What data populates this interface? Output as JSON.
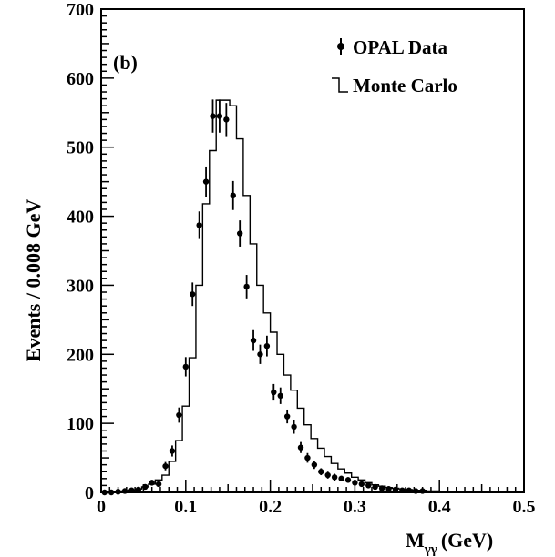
{
  "chart_data": {
    "type": "histogram",
    "panel_label": "(b)",
    "xlabel": "M",
    "xlabel_sub": "γγ",
    "xlabel_unit": "(GeV)",
    "ylabel": "Events / 0.008 GeV",
    "xlim": [
      0,
      0.5
    ],
    "ylim": [
      0,
      700
    ],
    "xticks": [
      0,
      0.1,
      0.2,
      0.3,
      0.4,
      0.5
    ],
    "yticks": [
      0,
      100,
      200,
      300,
      400,
      500,
      600,
      700
    ],
    "xtick_labels": [
      "0",
      "0.1",
      "0.2",
      "0.3",
      "0.4",
      "0.5"
    ],
    "ytick_labels": [
      "0",
      "100",
      "200",
      "300",
      "400",
      "500",
      "600",
      "700"
    ],
    "legend": {
      "placement": "top-right",
      "entries": [
        {
          "label": "OPAL Data",
          "marker": "point-errorbar"
        },
        {
          "label": "Monte Carlo",
          "marker": "step-line"
        }
      ]
    },
    "bin_width": 0.008,
    "monte_carlo": {
      "name": "Monte Carlo",
      "bin_edges": [
        0.0,
        0.008,
        0.016,
        0.024,
        0.032,
        0.04,
        0.048,
        0.056,
        0.064,
        0.072,
        0.08,
        0.088,
        0.096,
        0.104,
        0.112,
        0.12,
        0.128,
        0.136,
        0.144,
        0.152,
        0.16,
        0.168,
        0.176,
        0.184,
        0.192,
        0.2,
        0.208,
        0.216,
        0.224,
        0.232,
        0.24,
        0.248,
        0.256,
        0.264,
        0.272,
        0.28,
        0.288,
        0.296,
        0.304,
        0.312,
        0.32,
        0.328,
        0.336,
        0.344,
        0.352,
        0.36,
        0.368,
        0.376,
        0.384,
        0.392,
        0.4,
        0.408,
        0.416,
        0.424,
        0.432,
        0.44,
        0.448,
        0.456,
        0.464,
        0.472,
        0.48,
        0.488,
        0.496
      ],
      "values": [
        0,
        0,
        1,
        2,
        3,
        5,
        8,
        12,
        18,
        25,
        45,
        75,
        125,
        195,
        300,
        418,
        495,
        568,
        568,
        560,
        512,
        430,
        360,
        300,
        260,
        232,
        200,
        170,
        148,
        122,
        98,
        78,
        64,
        52,
        42,
        34,
        28,
        22,
        18,
        14,
        11,
        9,
        7,
        6,
        5,
        4,
        3,
        3,
        2,
        2,
        1,
        1,
        1,
        1,
        0,
        0,
        0,
        0,
        0,
        0,
        0,
        0
      ]
    },
    "opal_data": {
      "name": "OPAL Data",
      "x": [
        0.004,
        0.012,
        0.02,
        0.028,
        0.036,
        0.044,
        0.052,
        0.06,
        0.068,
        0.076,
        0.084,
        0.092,
        0.1,
        0.108,
        0.116,
        0.124,
        0.132,
        0.14,
        0.148,
        0.156,
        0.164,
        0.172,
        0.18,
        0.188,
        0.196,
        0.204,
        0.212,
        0.22,
        0.228,
        0.236,
        0.244,
        0.252,
        0.26,
        0.268,
        0.276,
        0.284,
        0.292,
        0.3,
        0.308,
        0.316,
        0.324,
        0.332,
        0.34,
        0.348,
        0.356,
        0.364,
        0.372,
        0.38
      ],
      "y": [
        0,
        0,
        1,
        2,
        3,
        4,
        8,
        14,
        12,
        38,
        60,
        112,
        182,
        287,
        387,
        450,
        545,
        545,
        540,
        430,
        375,
        298,
        220,
        200,
        212,
        145,
        140,
        110,
        95,
        65,
        50,
        40,
        30,
        25,
        22,
        20,
        18,
        14,
        12,
        10,
        8,
        6,
        5,
        4,
        3,
        3,
        2,
        2
      ],
      "yerr": [
        0,
        0,
        1,
        1.5,
        2,
        2,
        3,
        4,
        3.5,
        6,
        8,
        11,
        14,
        17,
        20,
        22,
        24,
        24,
        24,
        21,
        19,
        17,
        15,
        14,
        15,
        12,
        12,
        10,
        10,
        8,
        7,
        6,
        5,
        5,
        5,
        4,
        4,
        4,
        3,
        3,
        3,
        2,
        2,
        2,
        2,
        2,
        1,
        1
      ]
    }
  }
}
